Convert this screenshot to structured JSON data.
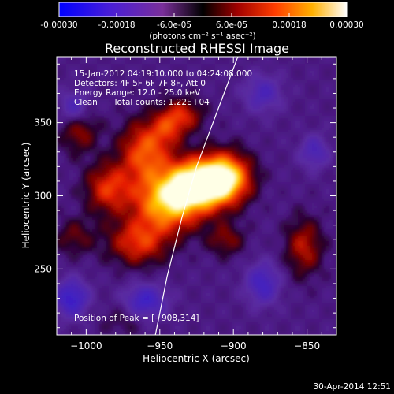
{
  "chart_data": {
    "type": "heatmap",
    "title": "Reconstructed RHESSI Image",
    "colorbar": {
      "ticks": [
        "-0.00030",
        "-0.00018",
        "-6.0e-05",
        "6.0e-05",
        "0.00018",
        "0.00030"
      ],
      "tick_values": [
        -0.0003,
        -0.00018,
        -6e-05,
        6e-05,
        0.00018,
        0.0003
      ],
      "range": [
        -0.0003,
        0.0003
      ],
      "unit_label": "(photons cm⁻² s⁻¹ asec⁻²)"
    },
    "xlabel": "Heliocentric X (arcsec)",
    "ylabel": "Heliocentric Y (arcsec)",
    "xlim": [
      -1020,
      -830
    ],
    "ylim": [
      205,
      395
    ],
    "x_ticks": [
      -1000,
      -950,
      -900,
      -850
    ],
    "x_tick_labels": [
      "−1000",
      "−950",
      "−900",
      "−850"
    ],
    "y_ticks": [
      250,
      300,
      350
    ],
    "y_tick_labels": [
      "250",
      "300",
      "350"
    ],
    "annotations": [
      "15-Jan-2012 04:19:10.000 to 04:24:08.000",
      "Detectors: 4F 5F 6F 7F 8F, Att 0",
      "Energy Range: 12.0 - 25.0 keV",
      "Clean      Total counts: 1.22E+04"
    ],
    "peak_label": "Position of Peak = [−908,314]",
    "peak": [
      -908,
      314
    ],
    "limb_line": [
      [
        -953,
        205
      ],
      [
        -945,
        245
      ],
      [
        -935,
        285
      ],
      [
        -925,
        320
      ],
      [
        -912,
        355
      ],
      [
        -897,
        395
      ]
    ],
    "emission_sources": [
      {
        "x": -925,
        "y": 308,
        "amp": 1.0,
        "sx": 14,
        "sy": 12
      },
      {
        "x": -905,
        "y": 312,
        "amp": 0.9,
        "sx": 12,
        "sy": 12
      },
      {
        "x": -945,
        "y": 295,
        "amp": 0.8,
        "sx": 16,
        "sy": 14
      },
      {
        "x": -960,
        "y": 330,
        "amp": 0.6,
        "sx": 12,
        "sy": 15
      },
      {
        "x": -985,
        "y": 305,
        "amp": 0.5,
        "sx": 11,
        "sy": 12
      },
      {
        "x": -965,
        "y": 268,
        "amp": 0.5,
        "sx": 14,
        "sy": 11
      },
      {
        "x": -1008,
        "y": 272,
        "amp": 0.25,
        "sx": 10,
        "sy": 9
      },
      {
        "x": -1005,
        "y": 345,
        "amp": 0.35,
        "sx": 9,
        "sy": 11
      },
      {
        "x": -935,
        "y": 355,
        "amp": 0.45,
        "sx": 10,
        "sy": 8
      },
      {
        "x": -945,
        "y": 345,
        "amp": 0.3,
        "sx": 8,
        "sy": 8
      },
      {
        "x": -852,
        "y": 265,
        "amp": 0.4,
        "sx": 9,
        "sy": 14
      },
      {
        "x": -905,
        "y": 270,
        "amp": 0.3,
        "sx": 9,
        "sy": 8
      },
      {
        "x": -975,
        "y": 215,
        "amp": 0.15,
        "sx": 10,
        "sy": 8
      },
      {
        "x": -1010,
        "y": 230,
        "amp": -0.55,
        "sx": 8,
        "sy": 9
      },
      {
        "x": -960,
        "y": 228,
        "amp": -0.5,
        "sx": 10,
        "sy": 8
      },
      {
        "x": -880,
        "y": 240,
        "amp": -0.45,
        "sx": 8,
        "sy": 10
      },
      {
        "x": -1008,
        "y": 360,
        "amp": -0.4,
        "sx": 7,
        "sy": 8
      },
      {
        "x": -880,
        "y": 370,
        "amp": -0.35,
        "sx": 9,
        "sy": 9
      },
      {
        "x": -845,
        "y": 330,
        "amp": -0.35,
        "sx": 7,
        "sy": 8
      }
    ]
  },
  "footer": {
    "date": "30-Apr-2014 12:51"
  }
}
